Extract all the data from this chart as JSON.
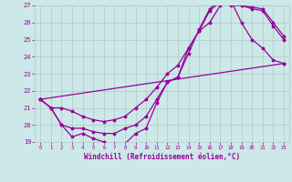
{
  "xlabel": "Windchill (Refroidissement éolien,°C)",
  "bg_color": "#cce8e8",
  "grid_color": "#b0c8c8",
  "line_color": "#990099",
  "xlim": [
    -0.5,
    23.5
  ],
  "ylim": [
    19,
    27
  ],
  "yticks": [
    19,
    20,
    21,
    22,
    23,
    24,
    25,
    26,
    27
  ],
  "xticks": [
    0,
    1,
    2,
    3,
    4,
    5,
    6,
    7,
    8,
    9,
    10,
    11,
    12,
    13,
    14,
    15,
    16,
    17,
    18,
    19,
    20,
    21,
    22,
    23
  ],
  "curve1_x": [
    0,
    1,
    2,
    3,
    4,
    5,
    6,
    7,
    8,
    9,
    10,
    11,
    12,
    13,
    14,
    15,
    16,
    17,
    18,
    19,
    20,
    21,
    22,
    23
  ],
  "curve1_y": [
    21.5,
    21.0,
    21.0,
    20.8,
    20.5,
    20.3,
    20.2,
    20.3,
    20.5,
    21.0,
    21.5,
    22.2,
    23.0,
    23.5,
    24.5,
    25.5,
    26.7,
    27.2,
    27.0,
    27.0,
    26.9,
    26.8,
    26.0,
    25.2
  ],
  "curve2_x": [
    0,
    1,
    2,
    3,
    4,
    5,
    6,
    7,
    8,
    9,
    10,
    11,
    12,
    13,
    14,
    15,
    16,
    17,
    18,
    19,
    20,
    21,
    22,
    23
  ],
  "curve2_y": [
    21.5,
    21.0,
    20.0,
    19.8,
    19.8,
    19.6,
    19.5,
    19.5,
    19.8,
    20.0,
    20.5,
    21.5,
    22.5,
    22.8,
    24.2,
    25.6,
    26.8,
    27.3,
    27.2,
    27.0,
    26.8,
    26.7,
    25.8,
    25.0
  ],
  "curve3_x": [
    0,
    1,
    2,
    3,
    4,
    5,
    6,
    7,
    8,
    9,
    10,
    11,
    12,
    13,
    14,
    15,
    16,
    17,
    18,
    19,
    20,
    21,
    22,
    23
  ],
  "curve3_y": [
    21.5,
    21.0,
    20.0,
    19.3,
    19.5,
    19.2,
    19.0,
    18.9,
    18.9,
    19.5,
    19.8,
    21.3,
    22.5,
    22.8,
    24.5,
    25.5,
    26.0,
    27.0,
    27.3,
    26.0,
    25.0,
    24.5,
    23.8,
    23.6
  ],
  "curve4_x": [
    0,
    23
  ],
  "curve4_y": [
    21.5,
    23.6
  ]
}
